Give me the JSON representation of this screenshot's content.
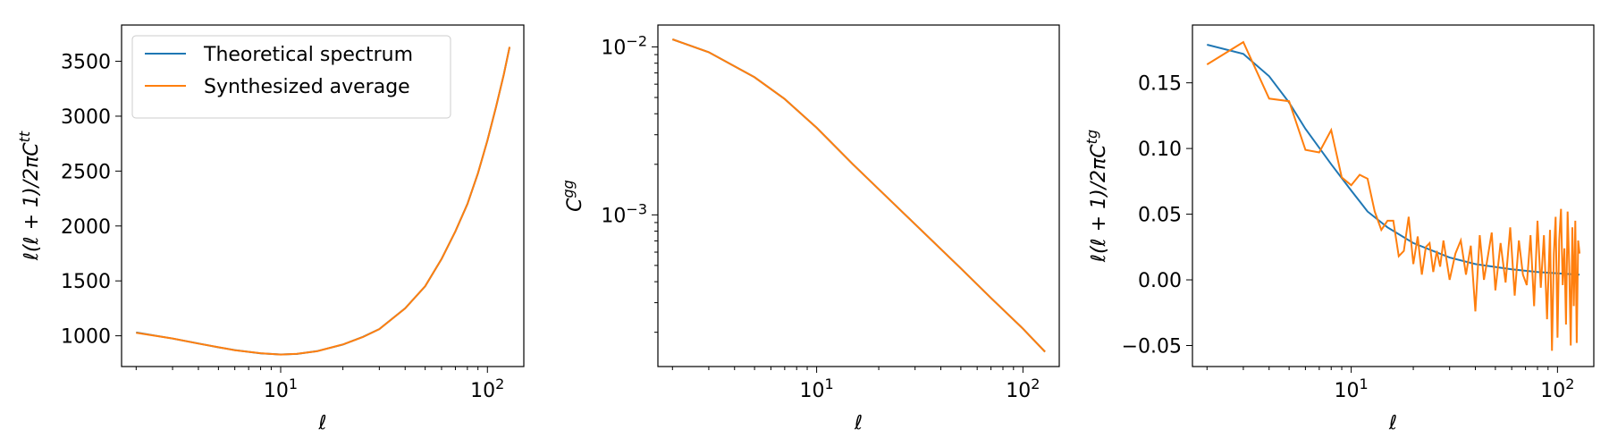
{
  "colors": {
    "theory": "#1f77b4",
    "synth": "#ff7f0e",
    "axes": "#000000",
    "background": "#ffffff"
  },
  "chart_data": [
    {
      "type": "line",
      "xscale": "log",
      "yscale": "linear",
      "xlabel": "ℓ",
      "ylabel": "ℓ(ℓ + 1)/2πC^tt",
      "xlim": [
        1.7,
        150
      ],
      "ylim": [
        720,
        3830
      ],
      "xticks": [
        {
          "value": 10,
          "label": "10^1"
        },
        {
          "value": 100,
          "label": "10^2"
        }
      ],
      "yticks": [
        {
          "value": 1000,
          "label": "1000"
        },
        {
          "value": 1500,
          "label": "1500"
        },
        {
          "value": 2000,
          "label": "2000"
        },
        {
          "value": 2500,
          "label": "2500"
        },
        {
          "value": 3000,
          "label": "3000"
        },
        {
          "value": 3500,
          "label": "3500"
        }
      ],
      "grid": false,
      "legend": "upper-left",
      "series": [
        {
          "name": "Theoretical spectrum",
          "color": "#1f77b4",
          "x": [
            2,
            3,
            4,
            5,
            6,
            8,
            10,
            12,
            15,
            20,
            25,
            30,
            40,
            50,
            60,
            70,
            80,
            90,
            100,
            110,
            120,
            128
          ],
          "y": [
            1030,
            975,
            930,
            895,
            870,
            840,
            830,
            835,
            860,
            920,
            990,
            1060,
            1250,
            1450,
            1700,
            1950,
            2200,
            2480,
            2780,
            3080,
            3380,
            3630
          ]
        },
        {
          "name": "Synthesized average",
          "color": "#ff7f0e",
          "x": [
            2,
            3,
            4,
            5,
            6,
            8,
            10,
            12,
            15,
            20,
            25,
            30,
            40,
            50,
            60,
            70,
            80,
            90,
            100,
            110,
            120,
            128
          ],
          "y": [
            1028,
            976,
            929,
            896,
            869,
            841,
            829,
            836,
            859,
            921,
            989,
            1061,
            1249,
            1451,
            1699,
            1951,
            2199,
            2481,
            2779,
            3081,
            3379,
            3631
          ]
        }
      ]
    },
    {
      "type": "line",
      "xscale": "log",
      "yscale": "log",
      "xlabel": "ℓ",
      "ylabel": "C^gg",
      "xlim": [
        1.7,
        150
      ],
      "ylim": [
        0.000125,
        0.0135
      ],
      "xticks": [
        {
          "value": 10,
          "label": "10^1"
        },
        {
          "value": 100,
          "label": "10^2"
        }
      ],
      "yticks": [
        {
          "value": 0.01,
          "label": "10^−2"
        },
        {
          "value": 0.001,
          "label": "10^−3"
        }
      ],
      "grid": false,
      "series": [
        {
          "name": "",
          "color": "#1f77b4",
          "x": [
            2,
            3,
            5,
            7,
            10,
            15,
            20,
            30,
            50,
            70,
            100,
            128
          ],
          "y": [
            0.0111,
            0.0093,
            0.0066,
            0.0049,
            0.0033,
            0.002,
            0.00142,
            0.00088,
            0.00048,
            0.00032,
            0.00021,
            0.000153
          ]
        },
        {
          "name": "",
          "color": "#ff7f0e",
          "x": [
            2,
            3,
            5,
            7,
            10,
            15,
            20,
            30,
            50,
            70,
            100,
            128
          ],
          "y": [
            0.0111,
            0.0093,
            0.0066,
            0.0049,
            0.0033,
            0.002,
            0.00142,
            0.00088,
            0.00048,
            0.00032,
            0.00021,
            0.000153
          ]
        }
      ]
    },
    {
      "type": "line",
      "xscale": "log",
      "yscale": "linear",
      "xlabel": "ℓ",
      "ylabel": "ℓ(ℓ + 1)/2πC^tg",
      "xlim": [
        1.7,
        150
      ],
      "ylim": [
        -0.066,
        0.194
      ],
      "xticks": [
        {
          "value": 10,
          "label": "10^1"
        },
        {
          "value": 100,
          "label": "10^2"
        }
      ],
      "yticks": [
        {
          "value": -0.05,
          "label": "−0.05"
        },
        {
          "value": 0.0,
          "label": "0.00"
        },
        {
          "value": 0.05,
          "label": "0.05"
        },
        {
          "value": 0.1,
          "label": "0.10"
        },
        {
          "value": 0.15,
          "label": "0.15"
        }
      ],
      "grid": false,
      "series": [
        {
          "name": "",
          "color": "#1f77b4",
          "x": [
            2,
            3,
            4,
            5,
            6,
            8,
            10,
            12,
            15,
            20,
            30,
            40,
            60,
            80,
            100,
            128
          ],
          "y": [
            0.179,
            0.172,
            0.155,
            0.135,
            0.115,
            0.088,
            0.068,
            0.052,
            0.04,
            0.028,
            0.017,
            0.012,
            0.008,
            0.006,
            0.005,
            0.004
          ]
        },
        {
          "name": "",
          "color": "#ff7f0e",
          "x": [
            2,
            3,
            4,
            5,
            6,
            7,
            8,
            9,
            10,
            11,
            12,
            13,
            14,
            15,
            16,
            17,
            18,
            19,
            20,
            21,
            22,
            23,
            24,
            25,
            26,
            27,
            28,
            30,
            32,
            34,
            36,
            38,
            40,
            42,
            44,
            46,
            48,
            50,
            53,
            56,
            59,
            62,
            65,
            68,
            71,
            74,
            77,
            80,
            83,
            86,
            89,
            92,
            94,
            96,
            98,
            100,
            102,
            104,
            106,
            108,
            110,
            112,
            114,
            116,
            118,
            120,
            122,
            124,
            126,
            128
          ],
          "y": [
            0.164,
            0.181,
            0.138,
            0.136,
            0.099,
            0.097,
            0.114,
            0.078,
            0.072,
            0.08,
            0.077,
            0.052,
            0.038,
            0.045,
            0.045,
            0.018,
            0.022,
            0.048,
            0.012,
            0.033,
            0.004,
            0.025,
            0.028,
            0.006,
            0.022,
            0.01,
            0.03,
            0.0,
            0.02,
            0.03,
            0.004,
            0.026,
            -0.024,
            0.034,
            0.0,
            0.018,
            0.036,
            -0.008,
            0.028,
            -0.002,
            0.04,
            -0.012,
            0.03,
            0.004,
            -0.004,
            0.034,
            -0.02,
            0.045,
            -0.006,
            0.034,
            -0.03,
            0.038,
            -0.054,
            0.02,
            0.048,
            -0.044,
            0.03,
            0.054,
            -0.004,
            0.024,
            -0.034,
            0.052,
            0.01,
            -0.05,
            0.04,
            -0.02,
            0.045,
            -0.048,
            0.03,
            0.02
          ]
        }
      ]
    }
  ]
}
